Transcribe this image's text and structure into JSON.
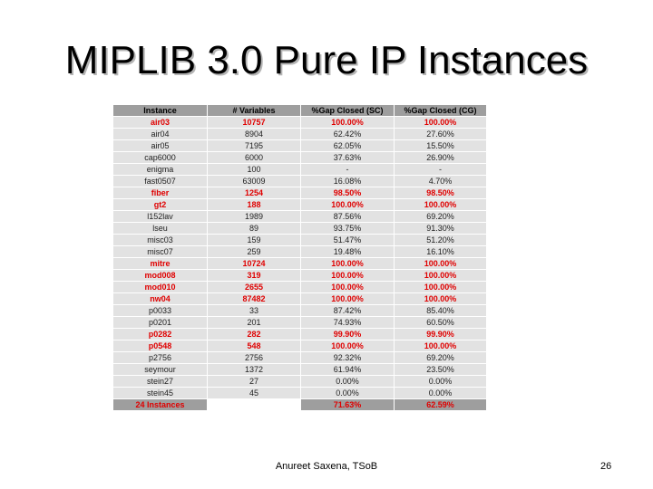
{
  "title": "MIPLIB 3.0 Pure IP Instances",
  "footer": "Anureet Saxena, TSoB",
  "page_number": "26",
  "table": {
    "headers": [
      "Instance",
      "# Variables",
      "%Gap Closed (SC)",
      "%Gap Closed (CG)"
    ],
    "rows": [
      {
        "instance": "air03",
        "variables": "10757",
        "sc": "100.00%",
        "cg": "100.00%",
        "highlight": true
      },
      {
        "instance": "air04",
        "variables": "8904",
        "sc": "62.42%",
        "cg": "27.60%",
        "highlight": false
      },
      {
        "instance": "air05",
        "variables": "7195",
        "sc": "62.05%",
        "cg": "15.50%",
        "highlight": false
      },
      {
        "instance": "cap6000",
        "variables": "6000",
        "sc": "37.63%",
        "cg": "26.90%",
        "highlight": false
      },
      {
        "instance": "enigma",
        "variables": "100",
        "sc": "-",
        "cg": "-",
        "highlight": false
      },
      {
        "instance": "fast0507",
        "variables": "63009",
        "sc": "16.08%",
        "cg": "4.70%",
        "highlight": false
      },
      {
        "instance": "fiber",
        "variables": "1254",
        "sc": "98.50%",
        "cg": "98.50%",
        "highlight": true
      },
      {
        "instance": "gt2",
        "variables": "188",
        "sc": "100.00%",
        "cg": "100.00%",
        "highlight": true
      },
      {
        "instance": "l152lav",
        "variables": "1989",
        "sc": "87.56%",
        "cg": "69.20%",
        "highlight": false
      },
      {
        "instance": "lseu",
        "variables": "89",
        "sc": "93.75%",
        "cg": "91.30%",
        "highlight": false
      },
      {
        "instance": "misc03",
        "variables": "159",
        "sc": "51.47%",
        "cg": "51.20%",
        "highlight": false
      },
      {
        "instance": "misc07",
        "variables": "259",
        "sc": "19.48%",
        "cg": "16.10%",
        "highlight": false
      },
      {
        "instance": "mitre",
        "variables": "10724",
        "sc": "100.00%",
        "cg": "100.00%",
        "highlight": true
      },
      {
        "instance": "mod008",
        "variables": "319",
        "sc": "100.00%",
        "cg": "100.00%",
        "highlight": true
      },
      {
        "instance": "mod010",
        "variables": "2655",
        "sc": "100.00%",
        "cg": "100.00%",
        "highlight": true
      },
      {
        "instance": "nw04",
        "variables": "87482",
        "sc": "100.00%",
        "cg": "100.00%",
        "highlight": true
      },
      {
        "instance": "p0033",
        "variables": "33",
        "sc": "87.42%",
        "cg": "85.40%",
        "highlight": false
      },
      {
        "instance": "p0201",
        "variables": "201",
        "sc": "74.93%",
        "cg": "60.50%",
        "highlight": false
      },
      {
        "instance": "p0282",
        "variables": "282",
        "sc": "99.90%",
        "cg": "99.90%",
        "highlight": true
      },
      {
        "instance": "p0548",
        "variables": "548",
        "sc": "100.00%",
        "cg": "100.00%",
        "highlight": true
      },
      {
        "instance": "p2756",
        "variables": "2756",
        "sc": "92.32%",
        "cg": "69.20%",
        "highlight": false
      },
      {
        "instance": "seymour",
        "variables": "1372",
        "sc": "61.94%",
        "cg": "23.50%",
        "highlight": false
      },
      {
        "instance": "stein27",
        "variables": "27",
        "sc": "0.00%",
        "cg": "0.00%",
        "highlight": false
      },
      {
        "instance": "stein45",
        "variables": "45",
        "sc": "0.00%",
        "cg": "0.00%",
        "highlight": false
      }
    ],
    "total": {
      "instance": "24 Instances",
      "variables": "",
      "sc": "71.63%",
      "cg": "62.59%"
    }
  }
}
